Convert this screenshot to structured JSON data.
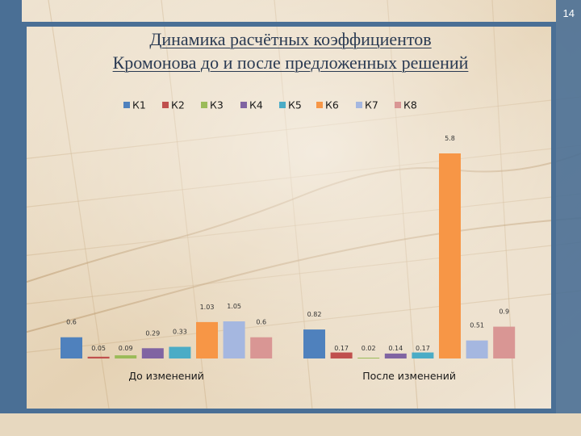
{
  "slide_number": "14",
  "title_lines": [
    "Динамика расчётных коэффициентов",
    "Кромонова до и после предложенных решений"
  ],
  "colors": {
    "frame": "#4a6f95",
    "title": "#2a3a52",
    "accent_band": "#4a6f95"
  },
  "chart_data": {
    "type": "bar",
    "categories": [
      "До изменений",
      "После изменений"
    ],
    "series": [
      {
        "name": "К1",
        "color": "#4f81bd",
        "values": [
          0.6,
          0.82
        ]
      },
      {
        "name": "К2",
        "color": "#c0504d",
        "values": [
          0.05,
          0.17
        ]
      },
      {
        "name": "К3",
        "color": "#9bbb59",
        "values": [
          0.09,
          0.02
        ]
      },
      {
        "name": "К4",
        "color": "#8064a2",
        "values": [
          0.29,
          0.14
        ]
      },
      {
        "name": "К5",
        "color": "#4bacc6",
        "values": [
          0.33,
          0.17
        ]
      },
      {
        "name": "К6",
        "color": "#f79646",
        "values": [
          1.03,
          5.8
        ]
      },
      {
        "name": "К7",
        "color": "#a5b7e0",
        "values": [
          1.05,
          0.51
        ]
      },
      {
        "name": "К8",
        "color": "#d99694",
        "values": [
          0.6,
          0.9
        ]
      }
    ],
    "data_labels": [
      [
        "0.6",
        "0.05",
        "0.09",
        "0.29",
        "0.33",
        "1.03",
        "1.05",
        "0.6"
      ],
      [
        "0.82",
        "0.17",
        "0.02",
        "0.14",
        "0.17",
        "5.8",
        "0.51",
        "0.9"
      ]
    ],
    "title": "",
    "xlabel": "",
    "ylabel": "",
    "ylim": [
      0,
      5.8
    ],
    "grid": false,
    "legend_position": "top"
  }
}
